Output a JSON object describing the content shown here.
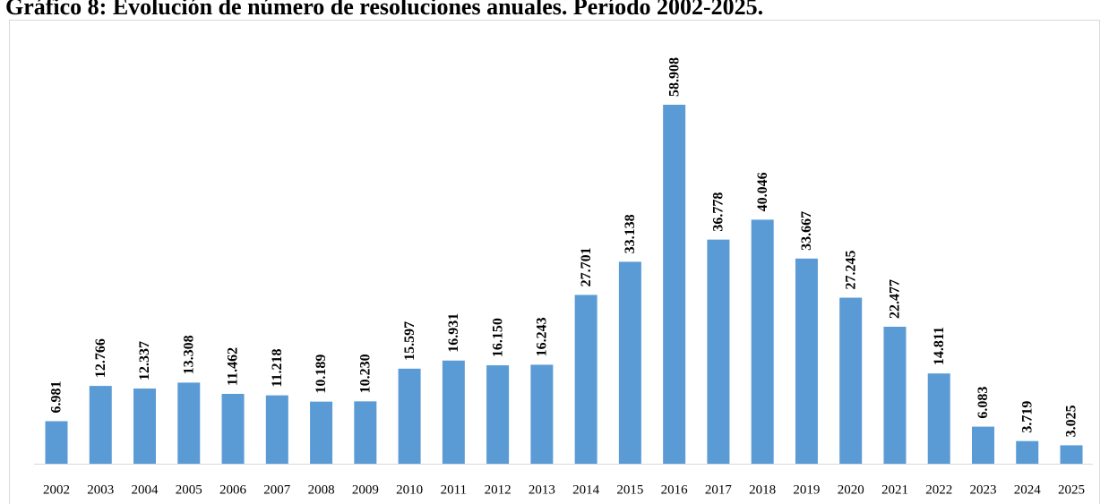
{
  "chart_data": {
    "type": "bar",
    "title": "Gráfico 8: Evolución de número de resoluciones anuales. Período 2002-2025.",
    "categories": [
      "2002",
      "2003",
      "2004",
      "2005",
      "2006",
      "2007",
      "2008",
      "2009",
      "2010",
      "2011",
      "2012",
      "2013",
      "2014",
      "2015",
      "2016",
      "2017",
      "2018",
      "2019",
      "2020",
      "2021",
      "2022",
      "2023",
      "2024",
      "2025"
    ],
    "values": [
      6981,
      12766,
      12337,
      13308,
      11462,
      11218,
      10189,
      10230,
      15597,
      16931,
      16150,
      16243,
      27701,
      33138,
      58908,
      36778,
      40046,
      33667,
      27245,
      22477,
      14811,
      6083,
      3719,
      3025
    ],
    "value_labels": [
      "6.981",
      "12.766",
      "12.337",
      "13.308",
      "11.462",
      "11.218",
      "10.189",
      "10.230",
      "15.597",
      "16.931",
      "16.150",
      "16.243",
      "27.701",
      "33.138",
      "58.908",
      "36.778",
      "40.046",
      "33.667",
      "27.245",
      "22.477",
      "14.811",
      "6.083",
      "3.719",
      "3.025"
    ],
    "color": "#5b9bd5"
  }
}
